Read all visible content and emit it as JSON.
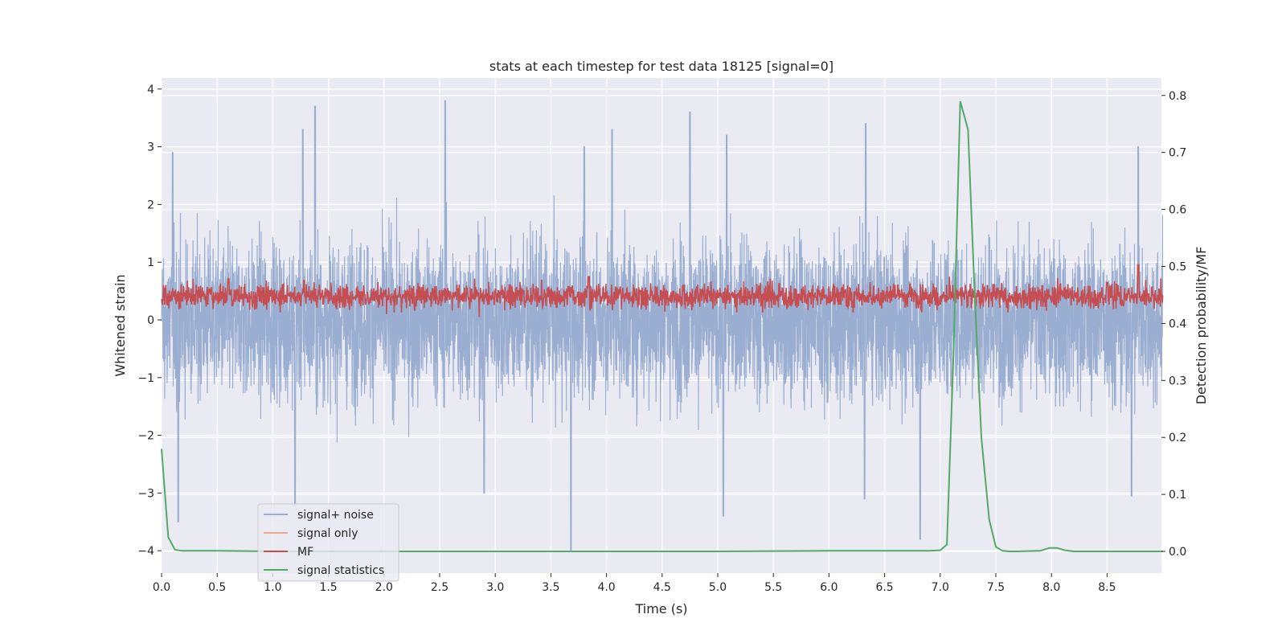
{
  "chart_data": {
    "type": "line",
    "title": "stats at each timestep for test data 18125 [signal=0]",
    "xlabel": "Time (s)",
    "ylabel": "Whitened strain",
    "y2label": "Detection probability/MF",
    "xlim": [
      0.0,
      9.0
    ],
    "ylim": [
      -4.38,
      4.2
    ],
    "y2lim": [
      -0.036,
      0.82
    ],
    "x_ticks": [
      "0.0",
      "0.5",
      "1.0",
      "1.5",
      "2.0",
      "2.5",
      "3.0",
      "3.5",
      "4.0",
      "4.5",
      "5.0",
      "5.5",
      "6.0",
      "6.5",
      "7.0",
      "7.5",
      "8.0",
      "8.5"
    ],
    "y_ticks": [
      "−4",
      "−3",
      "−2",
      "−1",
      "0",
      "1",
      "2",
      "3",
      "4"
    ],
    "y2_ticks": [
      "0.0",
      "0.1",
      "0.2",
      "0.3",
      "0.4",
      "0.5",
      "0.6",
      "0.7",
      "0.8"
    ],
    "grid": true,
    "legend_position": "lower-left",
    "series": [
      {
        "name": "signal+ noise",
        "axis": "left",
        "color": "#9aaed1",
        "style": "dense oscillation",
        "approx_range": [
          -4.0,
          3.8
        ],
        "peaks": [
          [
            0.1,
            2.9
          ],
          [
            1.27,
            3.3
          ],
          [
            1.38,
            3.7
          ],
          [
            2.55,
            3.8
          ],
          [
            3.8,
            3.0
          ],
          [
            4.05,
            3.3
          ],
          [
            4.75,
            3.6
          ],
          [
            5.08,
            3.2
          ],
          [
            6.33,
            3.4
          ],
          [
            8.78,
            3.0
          ]
        ],
        "troughs": [
          [
            0.15,
            -3.5
          ],
          [
            1.2,
            -3.2
          ],
          [
            2.9,
            -3.0
          ],
          [
            3.68,
            -4.0
          ],
          [
            5.05,
            -3.4
          ],
          [
            6.32,
            -3.1
          ],
          [
            6.82,
            -3.8
          ],
          [
            8.72,
            -3.05
          ]
        ]
      },
      {
        "name": "signal only",
        "axis": "left",
        "color": "#e9a78c",
        "values": []
      },
      {
        "name": "MF",
        "axis": "right",
        "color": "#c44e52",
        "style": "dense oscillation",
        "approx_range": [
          0.41,
          0.51
        ],
        "peaks": [
          [
            0.6,
            0.478
          ],
          [
            1.28,
            0.475
          ],
          [
            3.84,
            0.482
          ],
          [
            8.5,
            0.472
          ],
          [
            8.78,
            0.503
          ]
        ]
      },
      {
        "name": "signal statistics",
        "axis": "right",
        "color": "#55a868",
        "x": [
          0.0,
          0.06,
          0.12,
          0.18,
          0.3,
          0.5,
          1.0,
          2.0,
          3.0,
          4.0,
          5.0,
          6.0,
          6.6,
          6.9,
          7.0,
          7.06,
          7.12,
          7.18,
          7.25,
          7.31,
          7.37,
          7.44,
          7.5,
          7.56,
          7.62,
          7.7,
          7.9,
          7.98,
          8.05,
          8.12,
          8.2,
          8.5,
          9.0
        ],
        "values": [
          0.18,
          0.025,
          0.003,
          0.001,
          0.001,
          0.001,
          0.0,
          0.0,
          0.0,
          0.0,
          0.0,
          0.001,
          0.001,
          0.001,
          0.002,
          0.012,
          0.35,
          0.79,
          0.74,
          0.45,
          0.2,
          0.056,
          0.008,
          0.001,
          0.0,
          0.0,
          0.001,
          0.006,
          0.006,
          0.002,
          0.0,
          0.0,
          0.0
        ]
      }
    ]
  },
  "legend": [
    {
      "label": "signal+ noise",
      "color": "#9aaed1"
    },
    {
      "label": "signal only",
      "color": "#e9a78c"
    },
    {
      "label": "MF",
      "color": "#c44e52"
    },
    {
      "label": "signal statistics",
      "color": "#55a868"
    }
  ]
}
